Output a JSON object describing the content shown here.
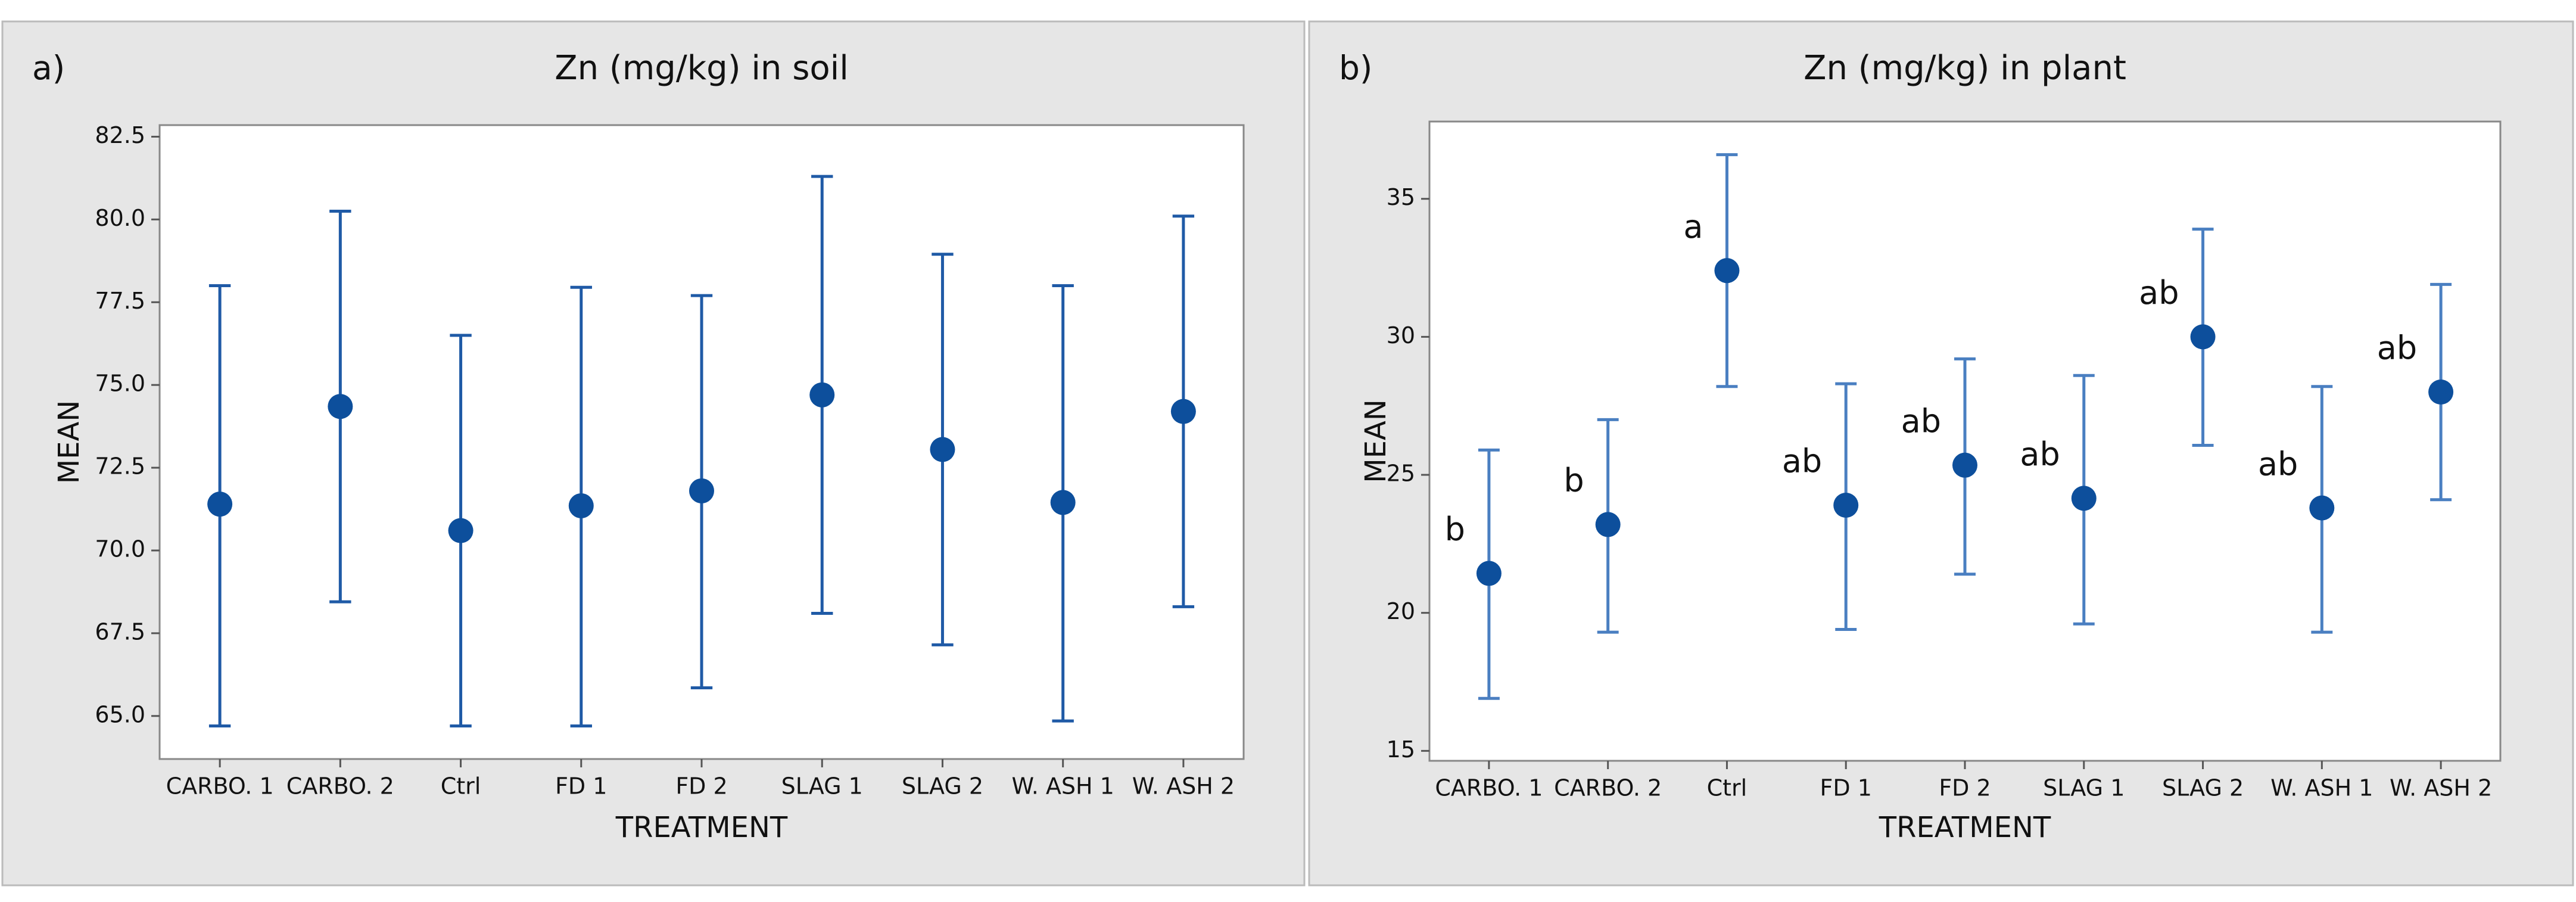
{
  "chart_data": [
    {
      "type": "errorbar",
      "panel_label": "a)",
      "title": "Zn (mg/kg) in soil",
      "x_label": "TREATMENT",
      "y_label": "MEAN",
      "categories": [
        "CARBO. 1",
        "CARBO. 2",
        "Ctrl",
        "FD 1",
        "FD 2",
        "SLAG 1",
        "SLAG 2",
        "W. ASH 1",
        "W. ASH 2"
      ],
      "values": [
        71.4,
        74.35,
        70.6,
        71.35,
        71.8,
        74.7,
        73.05,
        71.45,
        74.2
      ],
      "lower": [
        64.7,
        68.45,
        64.7,
        64.7,
        65.85,
        68.1,
        67.15,
        64.85,
        68.3
      ],
      "upper": [
        78.0,
        80.25,
        76.5,
        77.95,
        77.7,
        81.3,
        78.95,
        78.0,
        80.1
      ],
      "ylim": [
        63.7,
        82.85
      ],
      "yticks": [
        {
          "value": 65,
          "label": "65.0"
        },
        67.5,
        {
          "value": 70,
          "label": "70.0"
        },
        72.5,
        {
          "value": 75,
          "label": "75.0"
        },
        77.5,
        {
          "value": 80,
          "label": "80.0"
        },
        82.5
      ],
      "color": "#1f5aa6",
      "marker_color": "#0d4f9c"
    },
    {
      "type": "errorbar",
      "panel_label": "b)",
      "title": "Zn (mg/kg) in plant",
      "x_label": "TREATMENT",
      "y_label": "MEAN",
      "categories": [
        "CARBO. 1",
        "CARBO. 2",
        "Ctrl",
        "FD 1",
        "FD 2",
        "SLAG 1",
        "SLAG 2",
        "W. ASH 1",
        "W. ASH 2"
      ],
      "values": [
        21.43,
        23.2,
        32.4,
        23.9,
        25.35,
        24.15,
        30.0,
        23.8,
        28.0
      ],
      "lower": [
        16.9,
        19.3,
        28.2,
        19.4,
        21.4,
        19.6,
        26.07,
        19.3,
        24.1
      ],
      "upper": [
        25.9,
        27.0,
        36.6,
        28.3,
        29.2,
        28.6,
        33.9,
        28.2,
        31.9
      ],
      "annotations": [
        "b",
        "b",
        "a",
        "ab",
        "ab",
        "ab",
        "ab",
        "ab",
        "ab"
      ],
      "ylim": [
        14.64,
        37.8
      ],
      "yticks": [
        15,
        20,
        25,
        30,
        35
      ],
      "color": "#4a7fc1",
      "marker_color": "#0d4f9c"
    }
  ]
}
